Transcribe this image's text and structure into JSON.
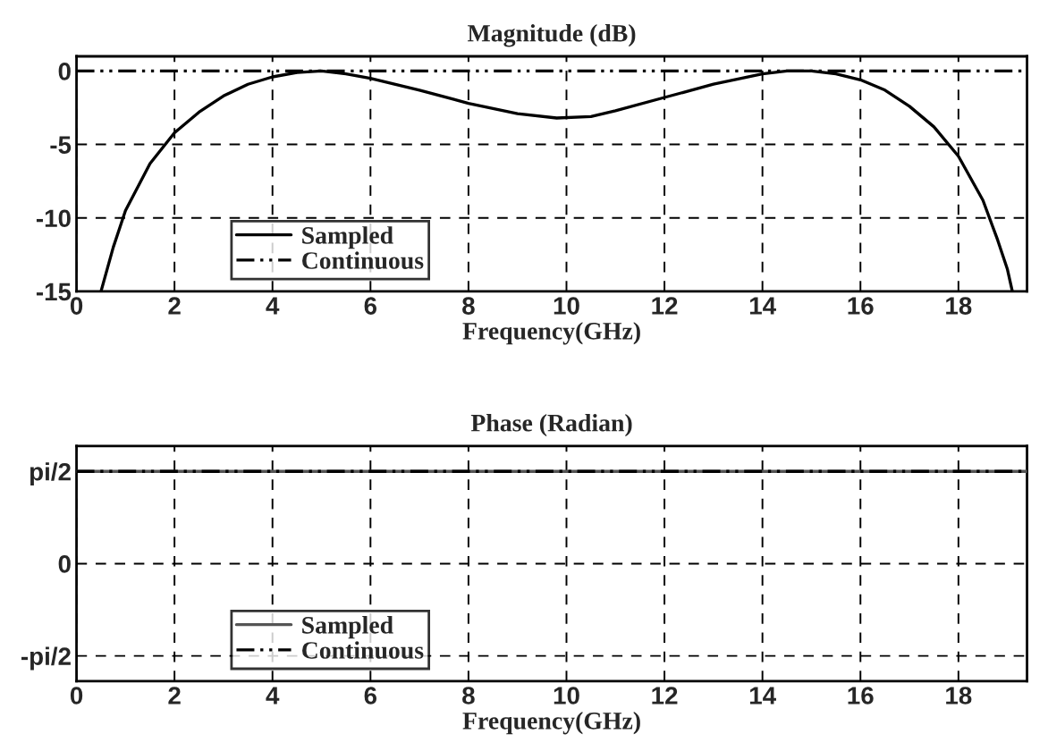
{
  "chart_data": [
    {
      "type": "line",
      "title": "Magnitude (dB)",
      "xlabel": "Frequency(GHz)",
      "xlim": [
        0,
        19.4
      ],
      "xticks": [
        0,
        2,
        4,
        6,
        8,
        10,
        12,
        14,
        16,
        18
      ],
      "ylim": [
        -15,
        1
      ],
      "yticks": [
        -15,
        -10,
        -5,
        0
      ],
      "grid": true,
      "legend": "bottom left",
      "series": [
        {
          "name": "Sampled",
          "color": "#000000",
          "line_style": "solid",
          "x": [
            0.5,
            0.75,
            1.0,
            1.5,
            2.0,
            2.5,
            3.0,
            3.5,
            4.0,
            4.5,
            5.0,
            5.5,
            6.0,
            7.0,
            8.0,
            9.0,
            9.8,
            10.5,
            11.0,
            12.0,
            13.0,
            14.0,
            14.5,
            15.0,
            15.5,
            16.0,
            16.5,
            17.0,
            17.5,
            18.0,
            18.5,
            18.8,
            19.0,
            19.1
          ],
          "values": [
            -15,
            -12,
            -9.5,
            -6.3,
            -4.2,
            -2.8,
            -1.7,
            -0.9,
            -0.4,
            -0.1,
            0,
            -0.2,
            -0.5,
            -1.3,
            -2.2,
            -2.9,
            -3.2,
            -3.1,
            -2.7,
            -1.8,
            -0.9,
            -0.2,
            0,
            0,
            -0.2,
            -0.6,
            -1.3,
            -2.4,
            -3.8,
            -5.8,
            -8.8,
            -11.5,
            -13.5,
            -15
          ]
        },
        {
          "name": "Continuous",
          "color": "#000000",
          "line_style": "dashed",
          "x": [
            0,
            19.4
          ],
          "values": [
            0,
            0
          ]
        }
      ]
    },
    {
      "type": "line",
      "title": "Phase (Radian)",
      "xlabel": "Frequency(GHz)",
      "xlim": [
        0,
        19.4
      ],
      "xticks": [
        0,
        2,
        4,
        6,
        8,
        10,
        12,
        14,
        16,
        18
      ],
      "ylim": [
        -2,
        2
      ],
      "yticks": [
        {
          "value": -1.57,
          "label": "-pi/2"
        },
        0,
        {
          "value": 1.57,
          "label": "pi/2"
        }
      ],
      "grid": true,
      "legend": "bottom left",
      "series": [
        {
          "name": "Sampled",
          "color": "#555555",
          "line_style": "solid",
          "x": [
            0,
            19.4
          ],
          "values": [
            1.57,
            1.57
          ]
        },
        {
          "name": "Continuous",
          "color": "#000000",
          "line_style": "dashed",
          "x": [
            0,
            19.4
          ],
          "values": [
            1.57,
            1.57
          ]
        }
      ]
    }
  ]
}
